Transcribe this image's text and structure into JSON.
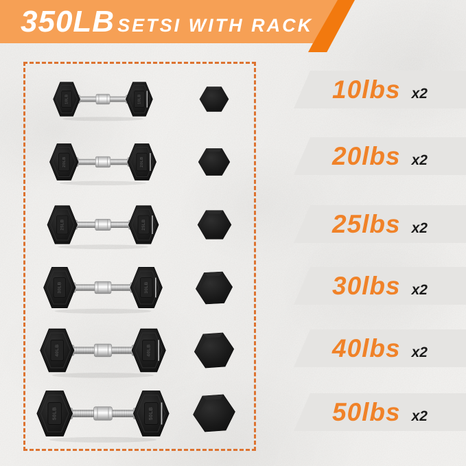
{
  "header": {
    "title_weight": "350LB",
    "title_rest": "SETSI WITH RACK"
  },
  "set_items": [
    {
      "weight": "10lbs",
      "qty": "x2",
      "plate_label": "10LB"
    },
    {
      "weight": "20lbs",
      "qty": "x2",
      "plate_label": "20LB"
    },
    {
      "weight": "25lbs",
      "qty": "x2",
      "plate_label": "25LB"
    },
    {
      "weight": "30lbs",
      "qty": "x2",
      "plate_label": "30LB"
    },
    {
      "weight": "40lbs",
      "qty": "x2",
      "plate_label": "40LB"
    },
    {
      "weight": "50lbs",
      "qty": "x2",
      "plate_label": "50LB"
    }
  ],
  "colors": {
    "banner_orange": "#F6A055",
    "banner_stripe_orange": "#F2790E",
    "dashed_border_orange": "#DD7330",
    "weight_text_orange": "#F08228",
    "band_gray": "#E5E4E2",
    "qty_black": "#1A1A1A"
  }
}
